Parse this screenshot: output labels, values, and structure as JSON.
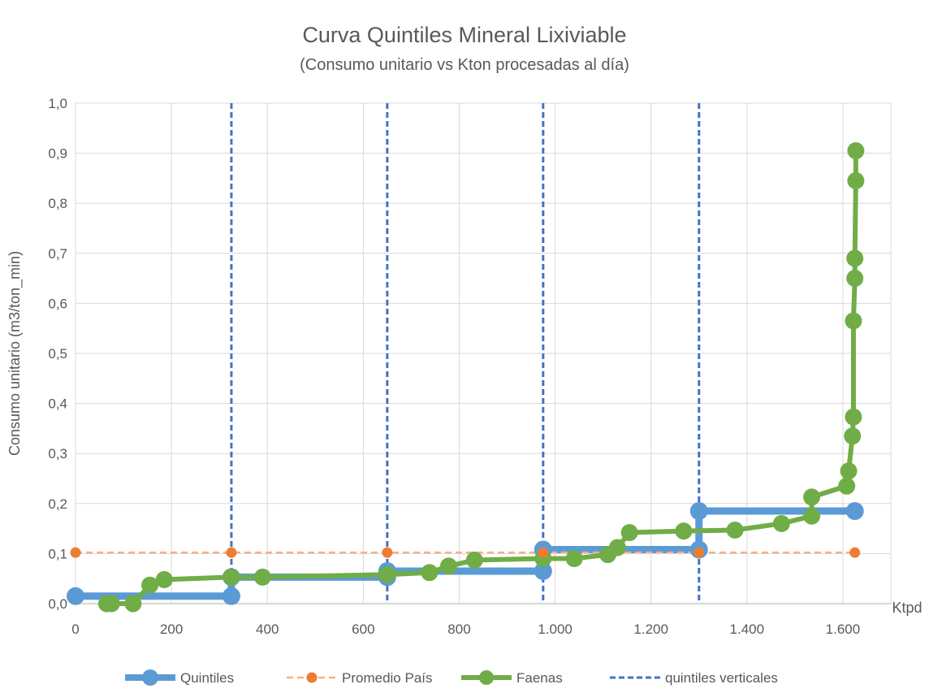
{
  "chart_data": {
    "type": "line",
    "title": "Curva Quintiles Mineral Lixiviable",
    "subtitle": "(Consumo unitario vs Kton procesadas al día)",
    "xlabel": "Ktpd",
    "ylabel": "Consumo unitario (m3/ton_min)",
    "xlim": [
      0,
      1700
    ],
    "ylim": [
      0,
      1.0
    ],
    "x_ticks": [
      0,
      200,
      400,
      600,
      800,
      1000,
      1200,
      1400,
      1600
    ],
    "x_tick_labels": [
      "0",
      "200",
      "400",
      "600",
      "800",
      "1.000",
      "1.200",
      "1.400",
      "1.600"
    ],
    "y_ticks": [
      0,
      0.1,
      0.2,
      0.3,
      0.4,
      0.5,
      0.6,
      0.7,
      0.8,
      0.9,
      1.0
    ],
    "y_tick_labels": [
      "0,0",
      "0,1",
      "0,2",
      "0,3",
      "0,4",
      "0,5",
      "0,6",
      "0,7",
      "0,8",
      "0,9",
      "1,0"
    ],
    "grid": true,
    "legend_position": "bottom",
    "series": [
      {
        "name": "Quintiles",
        "color": "#5B9BD5",
        "style": "solid-thick",
        "x": [
          0,
          325,
          325,
          650,
          650,
          975,
          975,
          1300,
          1300,
          1625
        ],
        "y": [
          0.015,
          0.015,
          0.053,
          0.053,
          0.065,
          0.065,
          0.108,
          0.108,
          0.185,
          0.185
        ],
        "markers": [
          0,
          325,
          325,
          650,
          650,
          975,
          975,
          1300,
          1300,
          1625
        ]
      },
      {
        "name": "Promedio País",
        "color": "#ED7D31",
        "line_color": "#F4B183",
        "style": "dashed",
        "x": [
          0,
          325,
          650,
          975,
          1300,
          1625
        ],
        "y": [
          0.102,
          0.102,
          0.102,
          0.102,
          0.102,
          0.102
        ]
      },
      {
        "name": "Faenas",
        "color": "#70AD47",
        "style": "solid",
        "x": [
          65,
          75,
          120,
          155,
          185,
          325,
          390,
          650,
          738,
          778,
          832,
          975,
          1040,
          1110,
          1130,
          1155,
          1268,
          1375,
          1472,
          1535,
          1535,
          1608,
          1612,
          1620,
          1622,
          1622,
          1625,
          1625,
          1627,
          1627
        ],
        "y": [
          0.0,
          0.0,
          0.0,
          0.037,
          0.048,
          0.053,
          0.053,
          0.058,
          0.062,
          0.075,
          0.087,
          0.09,
          0.09,
          0.098,
          0.112,
          0.142,
          0.145,
          0.147,
          0.16,
          0.175,
          0.213,
          0.235,
          0.265,
          0.335,
          0.373,
          0.565,
          0.65,
          0.69,
          0.845,
          0.905
        ]
      },
      {
        "name": "quintiles verticales",
        "color": "#4472C4",
        "style": "dashed-vertical",
        "x": [
          325,
          650,
          975,
          1300
        ]
      }
    ]
  }
}
